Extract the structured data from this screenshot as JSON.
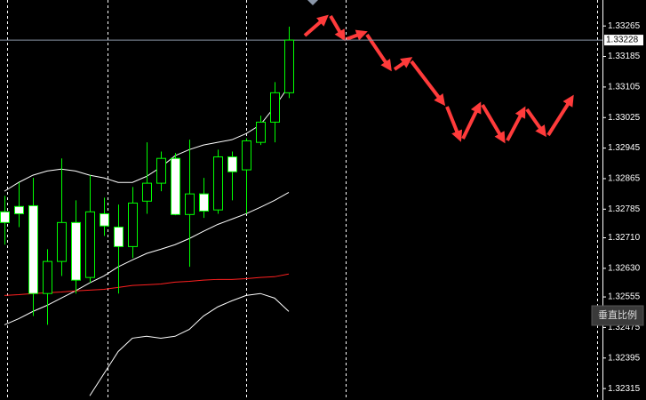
{
  "chart_data": {
    "type": "candlestick",
    "open": [
      1.32778,
      1.32792,
      1.32794,
      1.32564,
      1.32648,
      1.3275,
      1.32606,
      1.32773,
      1.32738,
      1.32687,
      1.32806,
      1.32853,
      1.32918,
      1.32771,
      1.32825,
      1.32783,
      1.32922,
      1.32888,
      1.3296,
      1.33013,
      1.3309
    ],
    "high": [
      1.3282,
      1.32855,
      1.32867,
      1.3268,
      1.32918,
      1.32808,
      1.32874,
      1.32815,
      1.32797,
      1.32843,
      1.3296,
      1.32936,
      1.32932,
      1.32967,
      1.32867,
      1.32941,
      1.32936,
      1.32971,
      1.3303,
      1.33118,
      1.33263
    ],
    "low": [
      1.32692,
      1.32738,
      1.32505,
      1.32482,
      1.3261,
      1.32564,
      1.32592,
      1.32715,
      1.32564,
      1.32657,
      1.32773,
      1.32832,
      1.32769,
      1.32634,
      1.32762,
      1.32773,
      1.32808,
      1.32773,
      1.32953,
      1.3296,
      1.33076
    ],
    "close": [
      1.3275,
      1.32773,
      1.32564,
      1.32648,
      1.3275,
      1.32599,
      1.32778,
      1.32741,
      1.32687,
      1.32801,
      1.32853,
      1.32918,
      1.32771,
      1.32825,
      1.3278,
      1.32922,
      1.32883,
      1.32964,
      1.33013,
      1.3309,
      1.33228
    ],
    "up_color": "#000000",
    "down_color": "#ffffff",
    "line_color": "#00ff00",
    "overlays": [
      {
        "color": "#ffffff",
        "values": [
          1.32832,
          1.32855,
          1.32874,
          1.32885,
          1.3289,
          1.32885,
          1.32874,
          1.32867,
          1.32855,
          1.32855,
          1.32871,
          1.32895,
          1.32925,
          1.32941,
          1.32953,
          1.3296,
          1.32967,
          1.32983,
          1.33006,
          1.33053,
          1.33107
        ]
      },
      {
        "color": "#ffffff",
        "values": [
          1.32482,
          1.32498,
          1.32517,
          1.32533,
          1.32552,
          1.32571,
          1.32592,
          1.3261,
          1.32634,
          1.32652,
          1.32669,
          1.3268,
          1.32692,
          1.32708,
          1.32727,
          1.32745,
          1.32759,
          1.32773,
          1.3279,
          1.32808,
          1.32829
        ]
      },
      {
        "color": "#ff2020",
        "values": [
          1.32559,
          1.32561,
          1.32564,
          1.32566,
          1.32568,
          1.32571,
          1.32573,
          1.32575,
          1.3258,
          1.32585,
          1.32587,
          1.32589,
          1.32594,
          1.32596,
          1.32599,
          1.32601,
          1.32601,
          1.32603,
          1.32606,
          1.32608,
          1.32615
        ]
      },
      {
        "color": "#ffffff",
        "values": [
          null,
          null,
          null,
          null,
          null,
          null,
          1.32296,
          1.32354,
          1.32412,
          1.32447,
          1.32452,
          1.32447,
          1.32452,
          1.3247,
          1.32505,
          1.32529,
          1.32545,
          1.32559,
          1.32564,
          1.32552,
          1.32517
        ]
      }
    ],
    "ylim": [
      1.32285,
      1.33333
    ],
    "yticks": [
      1.33265,
      1.33185,
      1.33105,
      1.33025,
      1.32945,
      1.32865,
      1.32785,
      {
        "value": 1.3271,
        "label": "1.32710"
      },
      {
        "value": 1.3263,
        "label": "1.32630"
      },
      1.32555,
      1.32475,
      1.32395,
      1.32315
    ],
    "last_price": 1.33228,
    "button": "垂直比例"
  }
}
